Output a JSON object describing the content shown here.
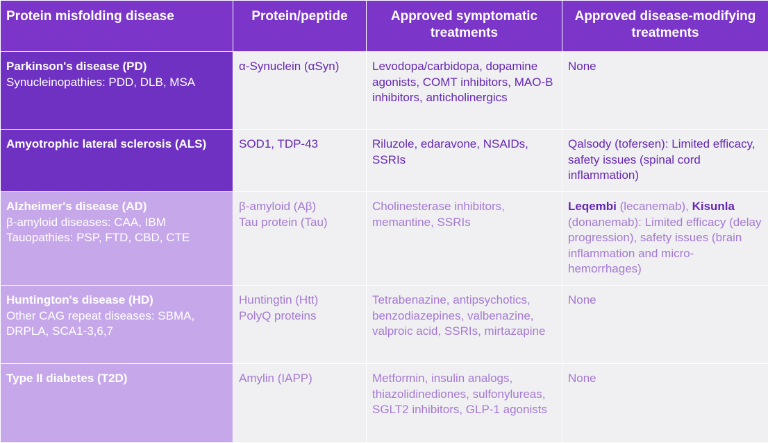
{
  "header": {
    "col1": "Protein misfolding disease",
    "col2": "Protein/peptide",
    "col3": "Approved symptomatic treatments",
    "col4": "Approved disease-modifying treatments"
  },
  "rows": [
    {
      "disease": "Parkinson's disease (PD)",
      "related": [
        "Synucleinopathies: PDD, DLB, MSA"
      ],
      "protein": [
        "α-Synuclein (αSyn)"
      ],
      "symptomatic": "Levodopa/carbidopa, dopamine agonists, COMT inhibitors, MAO-B inhibitors, anticholinergics",
      "modifying": "None"
    },
    {
      "disease": "Amyotrophic lateral sclerosis (ALS)",
      "related": [],
      "protein": [
        "SOD1, TDP-43"
      ],
      "symptomatic": "Riluzole, edaravone, NSAIDs, SSRIs",
      "modifying": "Qalsody (tofersen): Limited efficacy, safety issues (spinal cord inflammation)"
    },
    {
      "disease": "Alzheimer's disease (AD)",
      "related": [
        "β-amyloid diseases: CAA, IBM",
        "Tauopathies: PSP, FTD, CBD, CTE"
      ],
      "protein": [
        "β-amyloid (Aβ)",
        "Tau protein (Tau)"
      ],
      "symptomatic": "Cholinesterase inhibitors, memantine, SSRIs",
      "modifying_parts": {
        "drug1": "Leqembi",
        "generic1": " (lecanemab), ",
        "drug2": "Kisunla",
        "rest": " (donanemab): Limited efficacy (delay progression), safety issues (brain inflammation and micro-hemorrhages)"
      }
    },
    {
      "disease": "Huntington's disease (HD)",
      "related": [
        "Other CAG repeat diseases: SBMA, DRPLA, SCA1-3,6,7"
      ],
      "protein": [
        "Huntingtin (Htt)",
        "PolyQ proteins"
      ],
      "symptomatic": "Tetrabenazine, antipsychotics, benzodiazepines, valbenazine, valproic acid, SSRIs, mirtazapine",
      "modifying": "None"
    },
    {
      "disease": "Type II diabetes (T2D)",
      "related": [],
      "protein": [
        "Amylin (IAPP)"
      ],
      "symptomatic": "Metformin, insulin analogs, thiazolidinediones, sulfonylureas, SGLT2 inhibitors, GLP-1 agonists",
      "modifying": "None"
    }
  ],
  "colors": {
    "header_bg": "#7b35c9",
    "dark_disease_bg": "#6e31c2",
    "light_disease_bg": "#c6a8ea",
    "cell_bg": "#f0eff1",
    "dark_text": "#6428b4",
    "light_text": "#a47ad3"
  }
}
